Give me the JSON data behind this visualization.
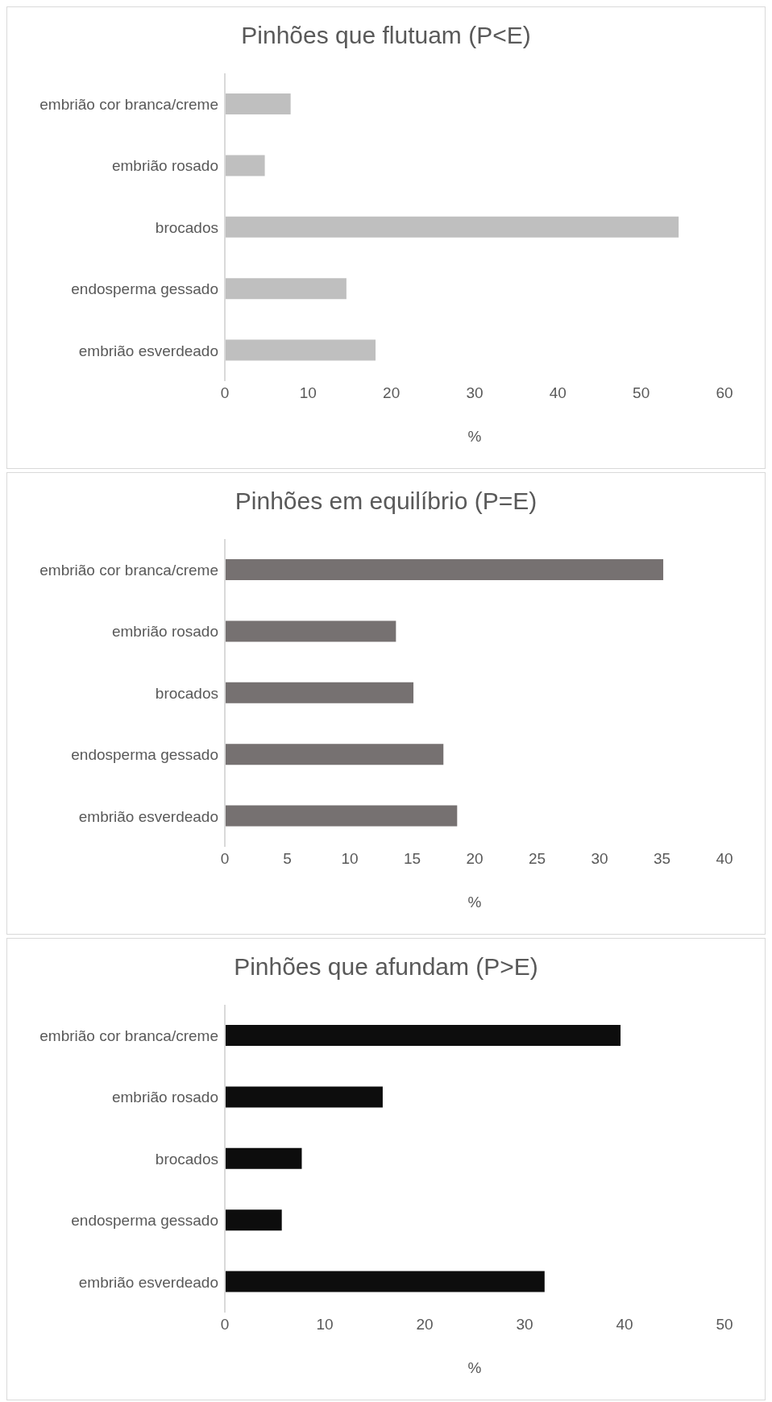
{
  "chart_data": [
    {
      "type": "bar",
      "orientation": "horizontal",
      "title": "Pinhões que flutuam (P<E)",
      "xlabel": "%",
      "categories": [
        "embrião cor branca/creme",
        "embrião rosado",
        "brocados",
        "endosperma gessado",
        "embrião esverdeado"
      ],
      "values": [
        7.9,
        4.8,
        54.5,
        14.6,
        18.1
      ],
      "color": "#bfbfbf",
      "xlim": [
        0,
        60
      ],
      "xticks": [
        0,
        10,
        20,
        30,
        40,
        50,
        60
      ],
      "grid": false,
      "legend": false
    },
    {
      "type": "bar",
      "orientation": "horizontal",
      "title": "Pinhões em equilíbrio (P=E)",
      "xlabel": "%",
      "categories": [
        "embrião cor branca/creme",
        "embrião rosado",
        "brocados",
        "endosperma gessado",
        "embrião esverdeado"
      ],
      "values": [
        35.1,
        13.7,
        15.1,
        17.5,
        18.6
      ],
      "color": "#767171",
      "xlim": [
        0,
        40
      ],
      "xticks": [
        0,
        5,
        10,
        15,
        20,
        25,
        30,
        35,
        40
      ],
      "grid": false,
      "legend": false
    },
    {
      "type": "bar",
      "orientation": "horizontal",
      "title": "Pinhões que afundam (P>E)",
      "xlabel": "%",
      "categories": [
        "embrião cor branca/creme",
        "embrião rosado",
        "brocados",
        "endosperma gessado",
        "embrião esverdeado"
      ],
      "values": [
        39.6,
        15.8,
        7.7,
        5.7,
        32.0
      ],
      "color": "#0d0d0d",
      "xlim": [
        0,
        50
      ],
      "xticks": [
        0,
        10,
        20,
        30,
        40,
        50
      ],
      "grid": false,
      "legend": false
    }
  ]
}
